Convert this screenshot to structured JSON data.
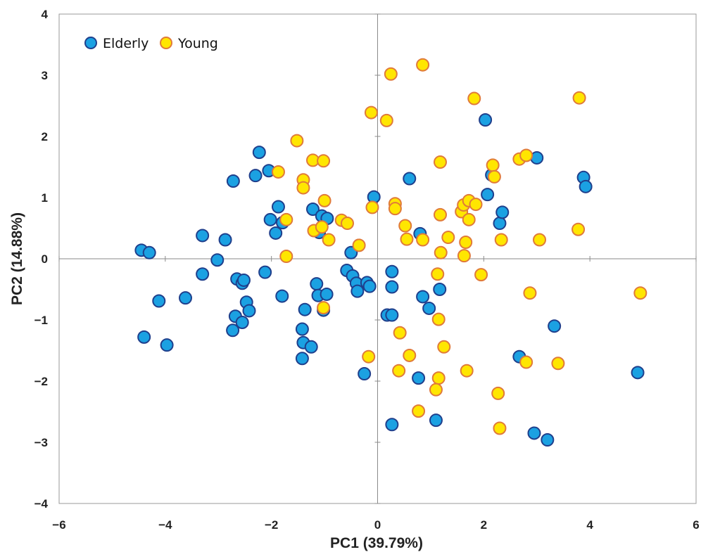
{
  "chart_data": {
    "type": "scatter",
    "title": "",
    "xlabel": "PC1 (39.79%)",
    "ylabel": "PC2 (14.88%)",
    "xlim": [
      -6,
      6
    ],
    "ylim": [
      -4,
      4
    ],
    "xticks": [
      -6,
      -4,
      -2,
      0,
      2,
      4,
      6
    ],
    "yticks": [
      -4,
      -3,
      -2,
      -1,
      0,
      1,
      2,
      3,
      4
    ],
    "grid": false,
    "zero_lines": true,
    "legend_position": "top-left",
    "series": [
      {
        "name": "Elderly",
        "color": "#1BA1E2",
        "edge_color": "#1F3F8C",
        "points": [
          [
            -4.45,
            0.14
          ],
          [
            -4.3,
            0.1
          ],
          [
            -4.4,
            -1.28
          ],
          [
            -4.12,
            -0.69
          ],
          [
            -3.97,
            -1.41
          ],
          [
            -3.62,
            -0.64
          ],
          [
            -3.3,
            0.38
          ],
          [
            -3.3,
            -0.25
          ],
          [
            -3.02,
            -0.02
          ],
          [
            -2.87,
            0.31
          ],
          [
            -2.72,
            1.27
          ],
          [
            -2.73,
            -1.17
          ],
          [
            -2.68,
            -0.94
          ],
          [
            -2.65,
            -0.33
          ],
          [
            -2.55,
            -0.4
          ],
          [
            -2.52,
            -0.35
          ],
          [
            -2.55,
            -1.04
          ],
          [
            -2.47,
            -0.71
          ],
          [
            -2.42,
            -0.85
          ],
          [
            -2.3,
            1.36
          ],
          [
            -2.23,
            1.74
          ],
          [
            -2.12,
            -0.22
          ],
          [
            -2.05,
            1.44
          ],
          [
            -2.02,
            0.64
          ],
          [
            -1.92,
            0.42
          ],
          [
            -1.87,
            0.85
          ],
          [
            -1.79,
            0.59
          ],
          [
            -1.8,
            -0.61
          ],
          [
            -1.42,
            -1.15
          ],
          [
            -1.4,
            -1.37
          ],
          [
            -1.42,
            -1.63
          ],
          [
            -1.37,
            -0.83
          ],
          [
            -1.25,
            -1.44
          ],
          [
            -1.22,
            0.81
          ],
          [
            -1.15,
            -0.41
          ],
          [
            -1.12,
            -0.6
          ],
          [
            -1.1,
            0.43
          ],
          [
            -1.05,
            0.7
          ],
          [
            -1.02,
            -0.84
          ],
          [
            -0.95,
            0.66
          ],
          [
            -0.96,
            -0.58
          ],
          [
            -0.58,
            -0.19
          ],
          [
            -0.5,
            0.1
          ],
          [
            -0.47,
            -0.28
          ],
          [
            -0.4,
            -0.4
          ],
          [
            -0.38,
            -0.53
          ],
          [
            -0.2,
            -0.39
          ],
          [
            -0.15,
            -0.45
          ],
          [
            -0.07,
            1.01
          ],
          [
            -0.25,
            -1.88
          ],
          [
            0.18,
            -0.92
          ],
          [
            0.27,
            -0.21
          ],
          [
            0.27,
            -0.92
          ],
          [
            0.27,
            -0.46
          ],
          [
            0.27,
            -2.71
          ],
          [
            0.6,
            1.31
          ],
          [
            0.77,
            -1.95
          ],
          [
            0.8,
            0.41
          ],
          [
            0.85,
            -0.62
          ],
          [
            0.97,
            -0.81
          ],
          [
            1.1,
            -2.64
          ],
          [
            1.17,
            -0.5
          ],
          [
            2.03,
            2.27
          ],
          [
            2.07,
            1.05
          ],
          [
            2.15,
            1.37
          ],
          [
            2.3,
            0.58
          ],
          [
            2.35,
            0.76
          ],
          [
            2.67,
            -1.6
          ],
          [
            3.0,
            1.65
          ],
          [
            2.95,
            -2.85
          ],
          [
            3.2,
            -2.96
          ],
          [
            3.33,
            -1.1
          ],
          [
            3.88,
            1.33
          ],
          [
            3.92,
            1.18
          ],
          [
            4.9,
            -1.86
          ]
        ]
      },
      {
        "name": "Young",
        "color": "#FFE600",
        "edge_color": "#E07A3A",
        "points": [
          [
            -1.52,
            1.93
          ],
          [
            -1.87,
            1.42
          ],
          [
            -1.4,
            1.29
          ],
          [
            -1.4,
            1.16
          ],
          [
            -1.22,
            1.61
          ],
          [
            -1.02,
            1.6
          ],
          [
            -1.72,
            0.64
          ],
          [
            -1.2,
            0.46
          ],
          [
            -1.05,
            0.52
          ],
          [
            -1.0,
            0.95
          ],
          [
            -0.92,
            0.31
          ],
          [
            -0.68,
            0.63
          ],
          [
            -0.57,
            0.58
          ],
          [
            -0.35,
            0.22
          ],
          [
            -1.72,
            0.04
          ],
          [
            -1.02,
            -0.8
          ],
          [
            -0.12,
            2.39
          ],
          [
            -0.1,
            0.84
          ],
          [
            0.17,
            2.26
          ],
          [
            0.25,
            3.02
          ],
          [
            0.33,
            0.9
          ],
          [
            0.33,
            0.82
          ],
          [
            0.52,
            0.54
          ],
          [
            0.55,
            0.32
          ],
          [
            0.85,
            3.17
          ],
          [
            0.85,
            0.31
          ],
          [
            1.82,
            2.62
          ],
          [
            1.18,
            1.58
          ],
          [
            1.18,
            0.72
          ],
          [
            1.19,
            0.1
          ],
          [
            1.33,
            0.35
          ],
          [
            1.13,
            -0.25
          ],
          [
            1.15,
            -0.99
          ],
          [
            1.25,
            -1.44
          ],
          [
            1.58,
            0.77
          ],
          [
            1.62,
            0.88
          ],
          [
            1.63,
            0.05
          ],
          [
            1.66,
            0.27
          ],
          [
            1.72,
            0.95
          ],
          [
            1.72,
            0.64
          ],
          [
            1.85,
            0.89
          ],
          [
            1.95,
            -0.26
          ],
          [
            2.17,
            1.53
          ],
          [
            2.2,
            1.34
          ],
          [
            2.33,
            0.31
          ],
          [
            2.67,
            1.63
          ],
          [
            2.8,
            1.69
          ],
          [
            3.05,
            0.31
          ],
          [
            2.87,
            -0.56
          ],
          [
            3.78,
            0.48
          ],
          [
            3.8,
            2.63
          ],
          [
            4.95,
            -0.56
          ],
          [
            0.42,
            -1.21
          ],
          [
            0.6,
            -1.58
          ],
          [
            0.4,
            -1.83
          ],
          [
            -0.17,
            -1.6
          ],
          [
            1.15,
            -1.95
          ],
          [
            1.1,
            -2.14
          ],
          [
            1.68,
            -1.83
          ],
          [
            2.27,
            -2.2
          ],
          [
            2.8,
            -1.69
          ],
          [
            3.4,
            -1.71
          ],
          [
            0.77,
            -2.49
          ],
          [
            2.3,
            -2.77
          ]
        ]
      }
    ]
  }
}
